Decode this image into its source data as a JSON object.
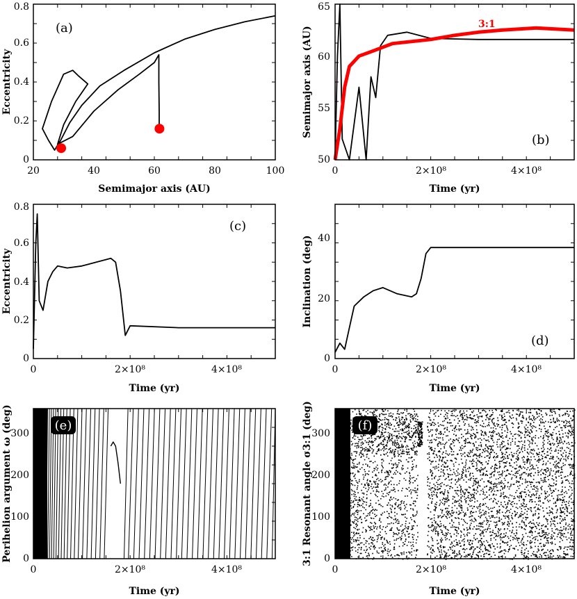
{
  "colors": {
    "ink": "#000000",
    "accent": "#ff0000",
    "bg": "#ffffff"
  },
  "chart_data": [
    {
      "id": "a",
      "type": "line",
      "panel_label": "(a)",
      "xlabel": "Semimajor axis (AU)",
      "ylabel": "Eccentricity",
      "xlim": [
        20,
        100
      ],
      "ylim": [
        0,
        0.8
      ],
      "xticks": [
        "20",
        "40",
        "60",
        "80",
        "100"
      ],
      "yticks": [
        "0",
        "0.2",
        "0.4",
        "0.6",
        "0.8"
      ],
      "series": [
        {
          "color": "#000000",
          "points": [
            [
              100,
              0.74
            ],
            [
              90,
              0.71
            ],
            [
              80,
              0.67
            ],
            [
              70,
              0.62
            ],
            [
              60,
              0.55
            ],
            [
              50,
              0.46
            ],
            [
              42,
              0.38
            ],
            [
              36,
              0.28
            ],
            [
              32,
              0.19
            ],
            [
              29,
              0.1
            ],
            [
              27,
              0.05
            ],
            [
              25,
              0.1
            ],
            [
              23,
              0.16
            ],
            [
              26,
              0.3
            ],
            [
              30,
              0.44
            ],
            [
              33,
              0.46
            ],
            [
              35,
              0.43
            ],
            [
              38,
              0.39
            ],
            [
              34,
              0.3
            ],
            [
              30,
              0.18
            ],
            [
              28,
              0.08
            ],
            [
              33,
              0.12
            ],
            [
              40,
              0.25
            ],
            [
              48,
              0.36
            ],
            [
              55,
              0.44
            ],
            [
              60,
              0.5
            ],
            [
              61.5,
              0.54
            ],
            [
              61.5,
              0.4
            ],
            [
              61.6,
              0.25
            ],
            [
              61.6,
              0.14
            ]
          ]
        }
      ],
      "markers": [
        {
          "x": 29.2,
          "y": 0.06,
          "color": "#ff0000"
        },
        {
          "x": 61.7,
          "y": 0.16,
          "color": "#ff0000"
        }
      ]
    },
    {
      "id": "b",
      "type": "line",
      "panel_label": "(b)",
      "xlabel": "Time (yr)",
      "ylabel": "Semimajor axis (AU)",
      "xlim": [
        0,
        500000000.0
      ],
      "ylim": [
        50,
        65
      ],
      "xticks": [
        "0",
        "2×10⁸",
        "4×10⁸"
      ],
      "yticks": [
        "50",
        "55",
        "60",
        "65"
      ],
      "series": [
        {
          "color": "#000000",
          "points": [
            [
              0,
              50
            ],
            [
              5000000,
              60
            ],
            [
              10000000,
              65
            ],
            [
              15000000,
              52
            ],
            [
              30000000,
              50
            ],
            [
              50000000,
              57
            ],
            [
              65000000,
              50
            ],
            [
              75000000,
              58
            ],
            [
              85000000,
              56
            ],
            [
              95000000,
              61
            ],
            [
              110000000,
              62
            ],
            [
              150000000,
              62.3
            ],
            [
              200000000,
              61.7
            ],
            [
              300000000,
              61.6
            ],
            [
              400000000,
              61.6
            ],
            [
              500000000,
              61.6
            ]
          ]
        },
        {
          "color": "#ff0000",
          "name": "3:1",
          "points": [
            [
              0,
              50
            ],
            [
              10000000,
              53
            ],
            [
              20000000,
              57
            ],
            [
              30000000,
              59
            ],
            [
              50000000,
              60
            ],
            [
              80000000,
              60.5
            ],
            [
              120000000,
              61.2
            ],
            [
              200000000,
              61.6
            ],
            [
              250000000,
              62
            ],
            [
              300000000,
              62.3
            ],
            [
              350000000,
              62.5
            ],
            [
              420000000,
              62.7
            ],
            [
              500000000,
              62.5
            ]
          ]
        }
      ],
      "annotations": [
        {
          "text": "3:1",
          "color": "#ff0000"
        }
      ]
    },
    {
      "id": "c",
      "type": "line",
      "panel_label": "(c)",
      "xlabel": "Time (yr)",
      "ylabel": "Eccentricity",
      "xlim": [
        0,
        500000000.0
      ],
      "ylim": [
        0,
        0.8
      ],
      "xticks": [
        "0",
        "2×10⁸",
        "4×10⁸"
      ],
      "yticks": [
        "0",
        "0.2",
        "0.4",
        "0.6",
        "0.8"
      ],
      "series": [
        {
          "color": "#000000",
          "points": [
            [
              0,
              0.05
            ],
            [
              5000000,
              0.6
            ],
            [
              8000000,
              0.75
            ],
            [
              12000000,
              0.3
            ],
            [
              20000000,
              0.25
            ],
            [
              30000000,
              0.4
            ],
            [
              40000000,
              0.45
            ],
            [
              50000000,
              0.48
            ],
            [
              70000000,
              0.47
            ],
            [
              100000000,
              0.48
            ],
            [
              130000000,
              0.5
            ],
            [
              160000000,
              0.52
            ],
            [
              170000000,
              0.5
            ],
            [
              180000000,
              0.35
            ],
            [
              190000000,
              0.12
            ],
            [
              200000000,
              0.17
            ],
            [
              300000000,
              0.16
            ],
            [
              400000000,
              0.16
            ],
            [
              500000000,
              0.16
            ]
          ]
        }
      ]
    },
    {
      "id": "d",
      "type": "line",
      "panel_label": "(d)",
      "xlabel": "Time (yr)",
      "ylabel": "Inclination (deg)",
      "xlim": [
        0,
        500000000.0
      ],
      "ylim": [
        0,
        50
      ],
      "xticks": [
        "0",
        "2×10⁸",
        "4×10⁸"
      ],
      "yticks": [
        "0",
        "20",
        "40"
      ],
      "series": [
        {
          "color": "#000000",
          "points": [
            [
              0,
              2
            ],
            [
              10000000,
              5
            ],
            [
              20000000,
              3
            ],
            [
              30000000,
              10
            ],
            [
              40000000,
              17
            ],
            [
              60000000,
              20
            ],
            [
              80000000,
              22
            ],
            [
              100000000,
              23
            ],
            [
              130000000,
              21
            ],
            [
              160000000,
              20
            ],
            [
              170000000,
              21
            ],
            [
              180000000,
              26
            ],
            [
              190000000,
              34
            ],
            [
              200000000,
              36
            ],
            [
              300000000,
              36
            ],
            [
              400000000,
              36
            ],
            [
              500000000,
              36
            ]
          ]
        }
      ]
    },
    {
      "id": "e",
      "type": "scatter",
      "panel_label": "(e)",
      "xlabel": "Time (yr)",
      "ylabel": "Perihelion argument ω (deg)",
      "xlim": [
        0,
        500000000.0
      ],
      "ylim": [
        0,
        360
      ],
      "xticks": [
        "0",
        "2×10⁸",
        "4×10⁸"
      ],
      "yticks": [
        "0",
        "100",
        "200",
        "300"
      ],
      "series": [
        {
          "color": "#000000",
          "points": [
            [
              160000000,
              270
            ],
            [
              165000000,
              280
            ],
            [
              170000000,
              270
            ],
            [
              175000000,
              230
            ],
            [
              180000000,
              180
            ]
          ]
        }
      ]
    },
    {
      "id": "f",
      "type": "scatter",
      "panel_label": "(f)",
      "xlabel": "Time (yr)",
      "ylabel": "3:1 Resonant angle σ3:1 (deg)",
      "xlim": [
        0,
        500000000.0
      ],
      "ylim": [
        0,
        360
      ],
      "xticks": [
        "0",
        "2×10⁸",
        "4×10⁸"
      ],
      "yticks": [
        "0",
        "100",
        "200",
        "300"
      ],
      "series": [
        {
          "color": "#000000",
          "points": [
            [
              150000000,
              300
            ],
            [
              160000000,
              290
            ],
            [
              170000000,
              310
            ],
            [
              180000000,
              280
            ]
          ]
        }
      ]
    }
  ]
}
